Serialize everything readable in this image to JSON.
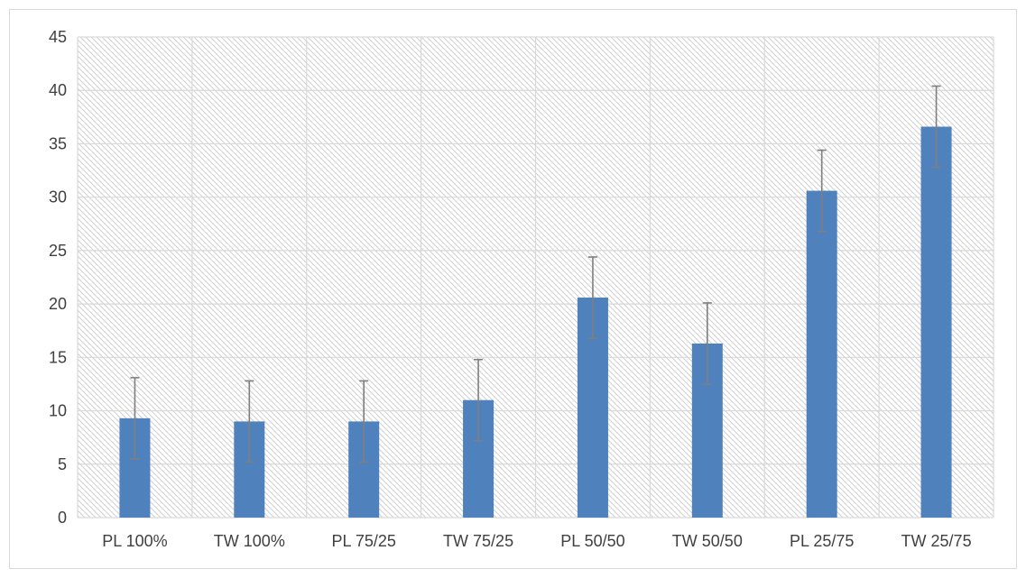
{
  "chart_data": {
    "type": "bar",
    "title": "",
    "xlabel": "",
    "ylabel": "",
    "categories": [
      "PL 100%",
      "TW 100%",
      "PL 75/25",
      "TW 75/25",
      "PL 50/50",
      "TW 50/50",
      "PL 25/75",
      "TW 25/75"
    ],
    "series": [
      {
        "values": [
          9.3,
          9.0,
          9.0,
          11.0,
          20.6,
          16.3,
          30.6,
          36.6
        ],
        "error": [
          3.8,
          3.8,
          3.8,
          3.8,
          3.8,
          3.8,
          3.8,
          3.8
        ],
        "color": "#4f81bd"
      }
    ],
    "ylim": [
      0,
      45
    ],
    "yticks": [
      0,
      5,
      10,
      15,
      20,
      25,
      30,
      35,
      40,
      45
    ],
    "grid": true,
    "plot_background": "hatched",
    "legend": "none",
    "colors": {
      "bar": "#4f81bd",
      "error_bar": "#7f7f7f",
      "grid": "#d9d9d9",
      "hatch": "#d0d0d0",
      "text": "#404040"
    }
  }
}
